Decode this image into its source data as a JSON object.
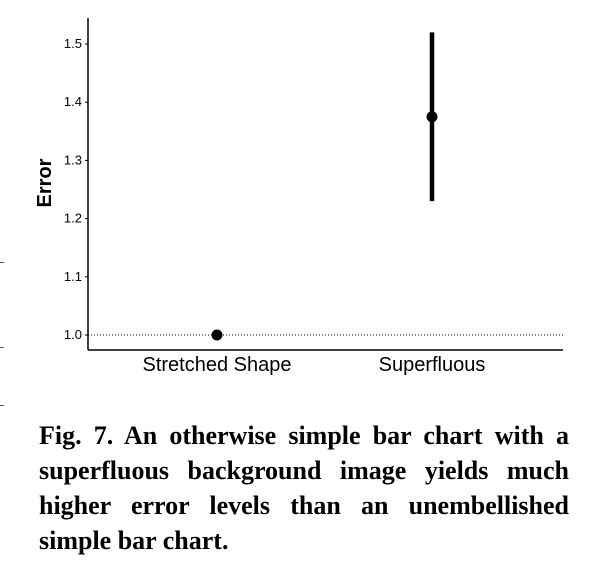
{
  "chart_data": {
    "type": "scatter",
    "categories": [
      "Stretched Shape",
      "Superfluous"
    ],
    "series": [
      {
        "name": "Error",
        "values": [
          1.0,
          1.375
        ],
        "error_low": [
          1.0,
          1.23
        ],
        "error_high": [
          1.0,
          1.52
        ]
      }
    ],
    "ylabel": "Error",
    "xlabel": "",
    "yticks": [
      1.0,
      1.1,
      1.2,
      1.3,
      1.4,
      1.5
    ],
    "ytick_labels": [
      "1.0",
      "1.1",
      "1.2",
      "1.3",
      "1.4",
      "1.5"
    ],
    "ylim": [
      0.97,
      1.55
    ],
    "reference_line": 1.0,
    "grid": false
  },
  "caption": {
    "text": "Fig. 7. An otherwise simple bar chart with a superfluous background image yields much higher error levels than an unem­bellished simple bar chart."
  }
}
